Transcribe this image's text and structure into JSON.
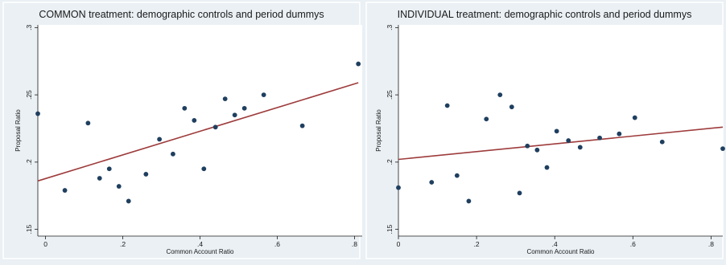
{
  "colors": {
    "background": "#eaf0f4",
    "plot_area": "#ffffff",
    "point": "#1f3f5f",
    "fit_line": "#9e3b3b",
    "axis": "#1a1a1a"
  },
  "chart_data": [
    {
      "type": "scatter",
      "title": "COMMON treatment: demographic controls and period dummys",
      "xlabel": "Common Account Ratio",
      "ylabel": "Proposal Ratio",
      "xlim": [
        -0.02,
        0.82
      ],
      "ylim": [
        0.145,
        0.302
      ],
      "x_ticks": [
        0,
        0.2,
        0.4,
        0.6,
        0.8
      ],
      "x_tick_labels": [
        "0",
        ".2",
        ".4",
        ".6",
        ".8"
      ],
      "y_ticks": [
        0.15,
        0.2,
        0.25,
        0.3
      ],
      "y_tick_labels": [
        ".15",
        ".2",
        ".25",
        ".3"
      ],
      "grid": false,
      "points": [
        {
          "x": -0.02,
          "y": 0.236
        },
        {
          "x": 0.05,
          "y": 0.179
        },
        {
          "x": 0.11,
          "y": 0.229
        },
        {
          "x": 0.14,
          "y": 0.188
        },
        {
          "x": 0.165,
          "y": 0.195
        },
        {
          "x": 0.19,
          "y": 0.182
        },
        {
          "x": 0.215,
          "y": 0.171
        },
        {
          "x": 0.26,
          "y": 0.191
        },
        {
          "x": 0.295,
          "y": 0.217
        },
        {
          "x": 0.33,
          "y": 0.206
        },
        {
          "x": 0.36,
          "y": 0.24
        },
        {
          "x": 0.385,
          "y": 0.231
        },
        {
          "x": 0.41,
          "y": 0.195
        },
        {
          "x": 0.44,
          "y": 0.226
        },
        {
          "x": 0.465,
          "y": 0.247
        },
        {
          "x": 0.49,
          "y": 0.235
        },
        {
          "x": 0.515,
          "y": 0.24
        },
        {
          "x": 0.565,
          "y": 0.25
        },
        {
          "x": 0.665,
          "y": 0.227
        },
        {
          "x": 0.81,
          "y": 0.273
        }
      ],
      "fit_line": {
        "x": [
          -0.02,
          0.81
        ],
        "y": [
          0.186,
          0.259
        ]
      }
    },
    {
      "type": "scatter",
      "title": "INDIVIDUAL treatment: demographic controls and period dummys",
      "xlabel": "Common Account Ratio",
      "ylabel": "Proposal Ratio",
      "xlim": [
        0,
        0.83
      ],
      "ylim": [
        0.145,
        0.302
      ],
      "x_ticks": [
        0,
        0.2,
        0.4,
        0.6,
        0.8
      ],
      "x_tick_labels": [
        "0",
        ".2",
        ".4",
        ".6",
        ".8"
      ],
      "y_ticks": [
        0.15,
        0.2,
        0.25,
        0.3
      ],
      "y_tick_labels": [
        ".15",
        ".2",
        ".25",
        ".3"
      ],
      "grid": false,
      "points": [
        {
          "x": 0.0,
          "y": 0.181
        },
        {
          "x": 0.085,
          "y": 0.185
        },
        {
          "x": 0.125,
          "y": 0.242
        },
        {
          "x": 0.15,
          "y": 0.19
        },
        {
          "x": 0.18,
          "y": 0.171
        },
        {
          "x": 0.225,
          "y": 0.232
        },
        {
          "x": 0.26,
          "y": 0.25
        },
        {
          "x": 0.29,
          "y": 0.241
        },
        {
          "x": 0.31,
          "y": 0.177
        },
        {
          "x": 0.33,
          "y": 0.212
        },
        {
          "x": 0.355,
          "y": 0.209
        },
        {
          "x": 0.38,
          "y": 0.196
        },
        {
          "x": 0.405,
          "y": 0.223
        },
        {
          "x": 0.435,
          "y": 0.216
        },
        {
          "x": 0.465,
          "y": 0.211
        },
        {
          "x": 0.515,
          "y": 0.218
        },
        {
          "x": 0.565,
          "y": 0.221
        },
        {
          "x": 0.605,
          "y": 0.233
        },
        {
          "x": 0.675,
          "y": 0.215
        },
        {
          "x": 0.83,
          "y": 0.21
        }
      ],
      "fit_line": {
        "x": [
          0.0,
          0.83
        ],
        "y": [
          0.202,
          0.226
        ]
      }
    }
  ]
}
